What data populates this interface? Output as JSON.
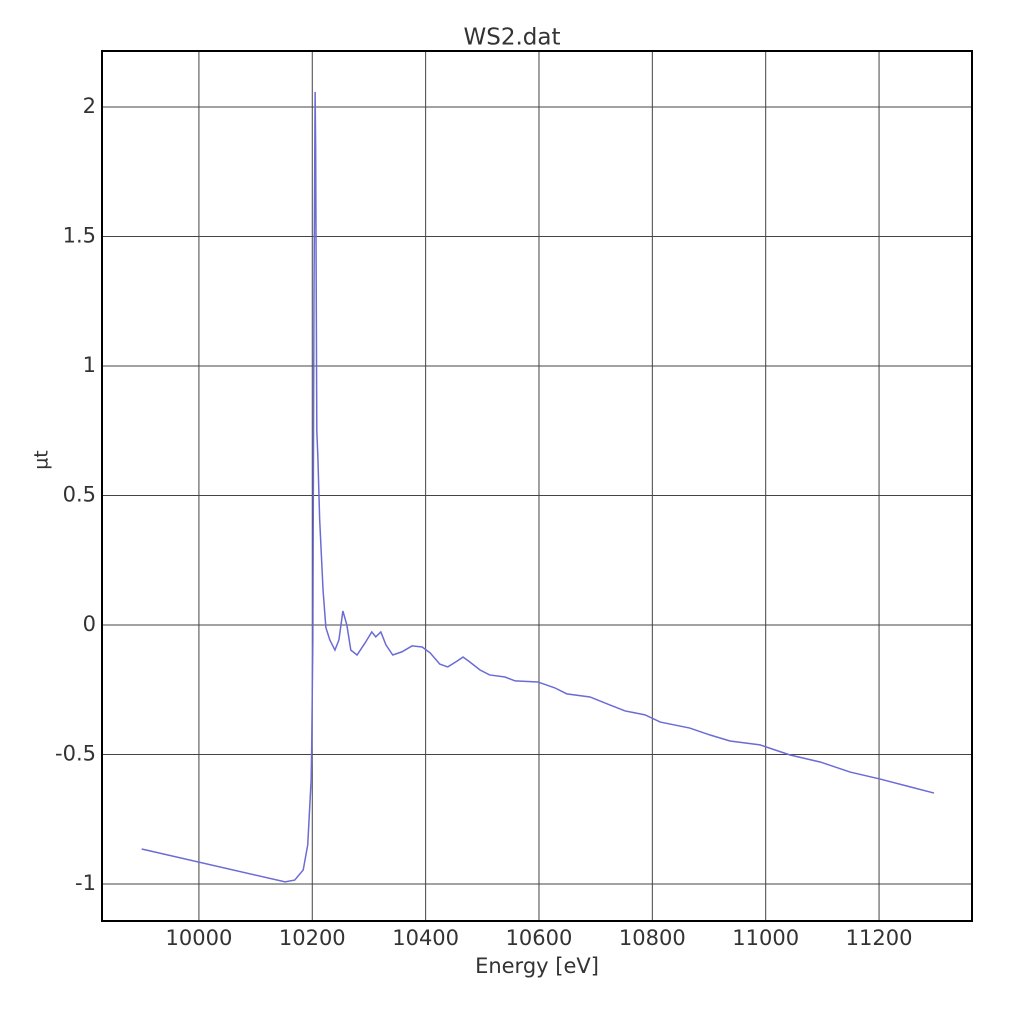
{
  "chart_data": {
    "type": "line",
    "title": "WS2.dat",
    "x_label": "Energy [eV]",
    "y_label": "µt",
    "color": "#6b6bd6",
    "grid": true,
    "xlim": [
      9829,
      11364
    ],
    "ylim": [
      -1.143,
      2.216
    ],
    "xticks": [
      10000,
      10200,
      10400,
      10600,
      10800,
      11000,
      11200
    ],
    "yticks": [
      -1,
      -0.5,
      0,
      0.5,
      1,
      1.5,
      2
    ],
    "x": [
      9899,
      10152,
      10169,
      10184,
      10192,
      10198,
      10199,
      10201,
      10203,
      10205,
      10206,
      10208,
      10210,
      10213,
      10219,
      10224,
      10231,
      10240,
      10247,
      10254,
      10261,
      10268,
      10279,
      10293,
      10305,
      10312,
      10321,
      10330,
      10342,
      10358,
      10376,
      10394,
      10408,
      10425,
      10439,
      10453,
      10466,
      10478,
      10496,
      10513,
      10540,
      10558,
      10598,
      10628,
      10649,
      10690,
      10725,
      10752,
      10787,
      10814,
      10866,
      10902,
      10937,
      10990,
      11043,
      11096,
      11149,
      11202,
      11255,
      11297
    ],
    "values": [
      -0.865,
      -0.992,
      -0.985,
      -0.946,
      -0.849,
      -0.598,
      -0.47,
      -0.058,
      1.255,
      2.058,
      1.83,
      0.75,
      0.64,
      0.41,
      0.135,
      -0.01,
      -0.058,
      -0.097,
      -0.058,
      0.054,
      0.0,
      -0.097,
      -0.116,
      -0.07,
      -0.027,
      -0.046,
      -0.027,
      -0.077,
      -0.116,
      -0.104,
      -0.081,
      -0.085,
      -0.108,
      -0.151,
      -0.162,
      -0.143,
      -0.124,
      -0.143,
      -0.174,
      -0.193,
      -0.201,
      -0.216,
      -0.22,
      -0.243,
      -0.266,
      -0.278,
      -0.309,
      -0.332,
      -0.347,
      -0.375,
      -0.398,
      -0.425,
      -0.448,
      -0.463,
      -0.502,
      -0.529,
      -0.568,
      -0.595,
      -0.625,
      -0.649
    ]
  }
}
